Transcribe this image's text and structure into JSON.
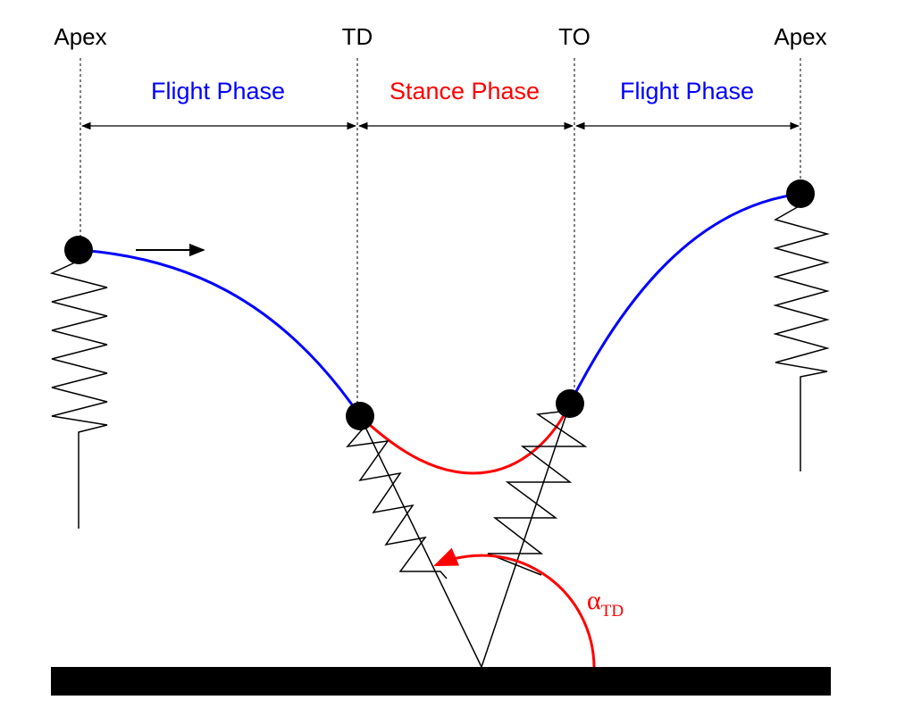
{
  "events": {
    "apex_left": "Apex",
    "td": "TD",
    "to": "TO",
    "apex_right": "Apex"
  },
  "phases": {
    "flight_1": "Flight Phase",
    "stance": "Stance Phase",
    "flight_2": "Flight Phase"
  },
  "angle_label": {
    "symbol": "α",
    "subscript": "TD"
  },
  "colors": {
    "flight": "#0000ff",
    "stance": "#ff0000",
    "ink": "#000000"
  }
}
